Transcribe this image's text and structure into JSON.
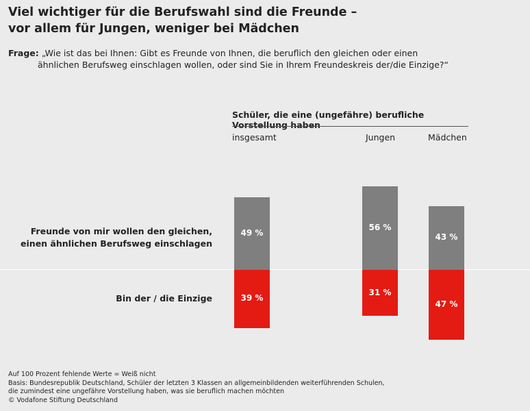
{
  "title": {
    "line1": "Viel wichtiger für die Berufswahl sind die Freunde –",
    "line2": "vor allem für Jungen, weniger bei Mädchen"
  },
  "question": {
    "label": "Frage:",
    "line1": "„Wie ist das bei Ihnen: Gibt es Freunde von Ihnen, die beruflich den gleichen oder einen",
    "line2": "ähnlichen Berufsweg einschlagen wollen, oder sind Sie in Ihrem Freundeskreis der/die Einzige?“"
  },
  "chart_data": {
    "type": "bar",
    "group_header": "Schüler, die eine (ungefähre) berufliche Vorstellung haben",
    "categories": [
      "insgesamt",
      "Jungen",
      "Mädchen"
    ],
    "series": [
      {
        "name_lines": [
          "Freunde von mir wollen den gleichen,",
          "einen ähnlichen Berufsweg einschlagen"
        ],
        "values": [
          49,
          56,
          43
        ],
        "value_labels": [
          "49 %",
          "56 %",
          "43 %"
        ],
        "color": "#7f7f7f",
        "direction": "up"
      },
      {
        "name_lines": [
          "Bin der / die Einzige"
        ],
        "values": [
          39,
          31,
          47
        ],
        "value_labels": [
          "39 %",
          "31 %",
          "47 %"
        ],
        "color": "#e31b13",
        "direction": "down"
      }
    ],
    "unit": "%"
  },
  "footer": {
    "line1": "Auf 100 Prozent fehlende Werte = Weiß nicht",
    "line2": "Basis: Bundesrepublik Deutschland, Schüler der letzten 3 Klassen an allgemeinbildenden weiterführenden Schulen,",
    "line3": "die zumindest eine ungefähre Vorstellung haben, was sie beruflich machen möchten",
    "line4": "© Vodafone Stiftung Deutschland"
  }
}
